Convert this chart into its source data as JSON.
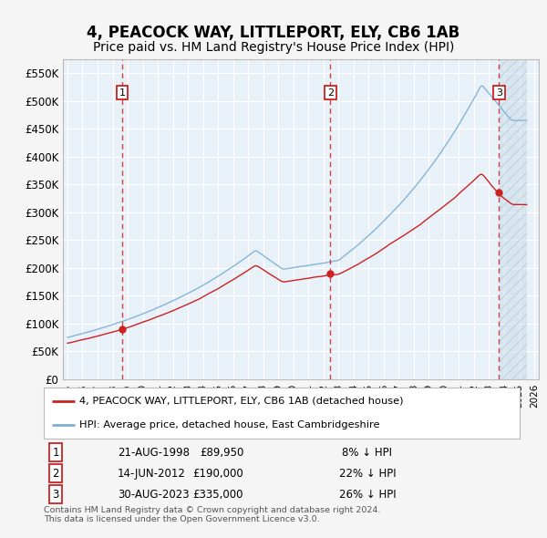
{
  "title": "4, PEACOCK WAY, LITTLEPORT, ELY, CB6 1AB",
  "subtitle": "Price paid vs. HM Land Registry's House Price Index (HPI)",
  "title_fontsize": 12,
  "subtitle_fontsize": 10,
  "ylim": [
    0,
    575000
  ],
  "yticks": [
    0,
    50000,
    100000,
    150000,
    200000,
    250000,
    300000,
    350000,
    400000,
    450000,
    500000,
    550000
  ],
  "ytick_labels": [
    "£0",
    "£50K",
    "£100K",
    "£150K",
    "£200K",
    "£250K",
    "£300K",
    "£350K",
    "£400K",
    "£450K",
    "£500K",
    "£550K"
  ],
  "hpi_color": "#7ab0d4",
  "price_color": "#cc2222",
  "dashed_color": "#cc2222",
  "background_color": "#e8f0f8",
  "fig_bg_color": "#f5f5f5",
  "grid_color": "#ffffff",
  "sale_dates": [
    "1998-08-21",
    "2012-06-14",
    "2023-08-30"
  ],
  "sale_prices": [
    89950,
    190000,
    335000
  ],
  "sale_labels": [
    "1",
    "2",
    "3"
  ],
  "legend_label_price": "4, PEACOCK WAY, LITTLEPORT, ELY, CB6 1AB (detached house)",
  "legend_label_hpi": "HPI: Average price, detached house, East Cambridgeshire",
  "table_rows": [
    [
      "1",
      "21-AUG-1998",
      "£89,950",
      "8% ↓ HPI"
    ],
    [
      "2",
      "14-JUN-2012",
      "£190,000",
      "22% ↓ HPI"
    ],
    [
      "3",
      "30-AUG-2023",
      "£335,000",
      "26% ↓ HPI"
    ]
  ],
  "footnote": "Contains HM Land Registry data © Crown copyright and database right 2024.\nThis data is licensed under the Open Government Licence v3.0.",
  "xstart_year": 1995,
  "xend_year": 2026
}
